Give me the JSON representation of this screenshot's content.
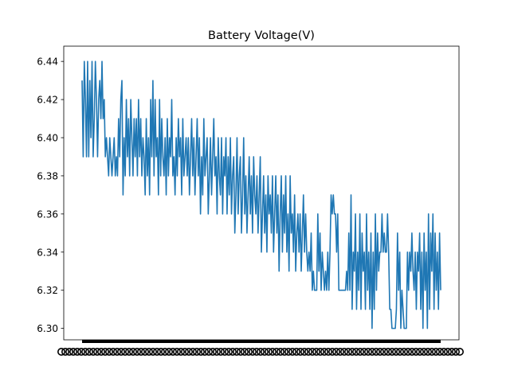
{
  "chart_data": {
    "type": "line",
    "title": "Battery Voltage(V)",
    "xlabel": "",
    "ylabel": "",
    "ylim": [
      6.294,
      6.448
    ],
    "yticks": [
      6.3,
      6.32,
      6.34,
      6.36,
      6.38,
      6.4,
      6.42,
      6.44
    ],
    "ytick_labels": [
      "6.30",
      "6.32",
      "6.34",
      "6.36",
      "6.38",
      "6.40",
      "6.42",
      "6.44"
    ],
    "x_tick_labels_note": "x-axis tick labels are overlapping and illegible",
    "grid": false,
    "series": [
      {
        "color": "#1f77b4",
        "values": [
          6.43,
          6.39,
          6.44,
          6.42,
          6.39,
          6.44,
          6.39,
          6.43,
          6.4,
          6.44,
          6.39,
          6.41,
          6.44,
          6.42,
          6.39,
          6.42,
          6.43,
          6.41,
          6.44,
          6.41,
          6.42,
          6.39,
          6.4,
          6.39,
          6.38,
          6.4,
          6.39,
          6.38,
          6.39,
          6.4,
          6.38,
          6.39,
          6.38,
          6.41,
          6.39,
          6.42,
          6.43,
          6.37,
          6.4,
          6.38,
          6.42,
          6.39,
          6.41,
          6.38,
          6.42,
          6.4,
          6.38,
          6.41,
          6.39,
          6.41,
          6.38,
          6.42,
          6.39,
          6.41,
          6.38,
          6.4,
          6.39,
          6.37,
          6.41,
          6.38,
          6.4,
          6.37,
          6.42,
          6.39,
          6.43,
          6.38,
          6.42,
          6.39,
          6.4,
          6.37,
          6.42,
          6.38,
          6.41,
          6.39,
          6.38,
          6.4,
          6.37,
          6.41,
          6.38,
          6.4,
          6.39,
          6.42,
          6.38,
          6.39,
          6.37,
          6.4,
          6.38,
          6.41,
          6.39,
          6.4,
          6.37,
          6.41,
          6.38,
          6.39,
          6.4,
          6.38,
          6.4,
          6.37,
          6.39,
          6.41,
          6.38,
          6.4,
          6.37,
          6.39,
          6.41,
          6.38,
          6.4,
          6.36,
          6.39,
          6.37,
          6.41,
          6.38,
          6.39,
          6.4,
          6.36,
          6.38,
          6.4,
          6.37,
          6.39,
          6.41,
          6.38,
          6.39,
          6.36,
          6.4,
          6.38,
          6.37,
          6.4,
          6.36,
          6.39,
          6.38,
          6.4,
          6.36,
          6.39,
          6.37,
          6.4,
          6.36,
          6.38,
          6.39,
          6.35,
          6.37,
          6.4,
          6.36,
          6.38,
          6.39,
          6.35,
          6.37,
          6.4,
          6.36,
          6.38,
          6.35,
          6.37,
          6.39,
          6.36,
          6.38,
          6.35,
          6.39,
          6.37,
          6.36,
          6.38,
          6.35,
          6.37,
          6.39,
          6.34,
          6.36,
          6.38,
          6.35,
          6.37,
          6.34,
          6.38,
          6.36,
          6.37,
          6.35,
          6.38,
          6.34,
          6.36,
          6.38,
          6.35,
          6.37,
          6.33,
          6.36,
          6.38,
          6.34,
          6.37,
          6.35,
          6.38,
          6.34,
          6.36,
          6.33,
          6.38,
          6.35,
          6.36,
          6.34,
          6.37,
          6.33,
          6.35,
          6.36,
          6.34,
          6.36,
          6.33,
          6.35,
          6.37,
          6.34,
          6.36,
          6.34,
          6.33,
          6.34,
          6.33,
          6.35,
          6.32,
          6.33,
          6.32,
          6.32,
          6.32,
          6.36,
          6.33,
          6.35,
          6.32,
          6.34,
          6.33,
          6.32,
          6.33,
          6.32,
          6.34,
          6.32,
          6.34,
          6.37,
          6.36,
          6.37,
          6.36,
          6.36,
          6.34,
          6.36,
          6.32,
          6.32,
          6.32,
          6.32,
          6.32,
          6.32,
          6.32,
          6.33,
          6.32,
          6.35,
          6.32,
          6.37,
          6.31,
          6.34,
          6.33,
          6.36,
          6.31,
          6.34,
          6.32,
          6.36,
          6.31,
          6.35,
          6.33,
          6.34,
          6.31,
          6.36,
          6.32,
          6.34,
          6.31,
          6.35,
          6.3,
          6.34,
          6.31,
          6.36,
          6.32,
          6.35,
          6.33,
          6.34,
          6.34,
          6.36,
          6.34,
          6.35,
          6.34,
          6.34,
          6.36,
          6.34,
          6.31,
          6.31,
          6.3,
          6.3,
          6.3,
          6.3,
          6.31,
          6.35,
          6.32,
          6.34,
          6.3,
          6.32,
          6.31,
          6.3,
          6.3,
          6.3,
          6.34,
          6.32,
          6.34,
          6.33,
          6.35,
          6.33,
          6.32,
          6.34,
          6.31,
          6.34,
          6.33,
          6.35,
          6.31,
          6.34,
          6.3,
          6.35,
          6.32,
          6.34,
          6.3,
          6.36,
          6.31,
          6.35,
          6.33,
          6.36,
          6.31,
          6.35,
          6.32,
          6.34,
          6.31,
          6.35,
          6.32
        ]
      }
    ]
  }
}
